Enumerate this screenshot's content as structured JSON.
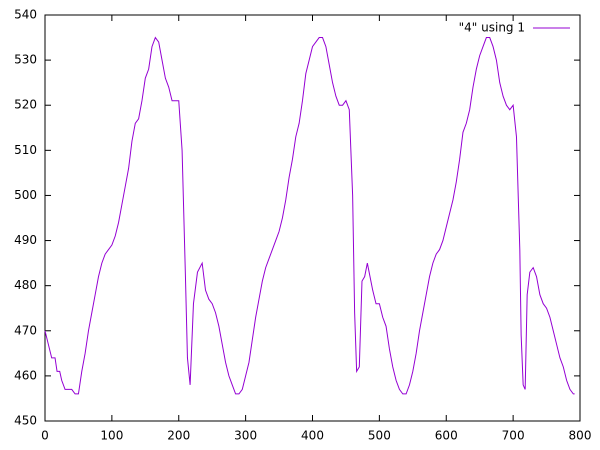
{
  "chart_data": {
    "type": "line",
    "x": [
      0,
      5,
      10,
      15,
      18,
      22,
      25,
      30,
      40,
      45,
      50,
      52,
      55,
      60,
      65,
      70,
      75,
      80,
      85,
      90,
      95,
      100,
      105,
      110,
      115,
      120,
      125,
      130,
      135,
      140,
      145,
      150,
      155,
      160,
      165,
      170,
      175,
      180,
      185,
      190,
      195,
      200,
      205,
      210,
      213,
      217,
      222,
      228,
      235,
      240,
      245,
      250,
      255,
      260,
      265,
      270,
      275,
      280,
      285,
      290,
      295,
      300,
      305,
      310,
      315,
      320,
      325,
      330,
      335,
      340,
      345,
      350,
      355,
      360,
      365,
      370,
      375,
      380,
      385,
      390,
      395,
      400,
      410,
      415,
      420,
      425,
      430,
      435,
      440,
      445,
      450,
      455,
      460,
      463,
      466,
      470,
      474,
      478,
      482,
      486,
      490,
      495,
      500,
      505,
      510,
      515,
      520,
      525,
      530,
      535,
      540,
      545,
      550,
      555,
      560,
      565,
      570,
      575,
      580,
      585,
      590,
      595,
      600,
      605,
      610,
      615,
      620,
      625,
      630,
      635,
      640,
      645,
      650,
      655,
      660,
      665,
      670,
      675,
      680,
      685,
      690,
      695,
      700,
      705,
      710,
      712,
      715,
      718,
      721,
      725,
      730,
      735,
      740,
      745,
      750,
      755,
      760,
      765,
      770,
      775,
      780,
      785,
      790,
      792
    ],
    "series": [
      {
        "name": "\"4\" using 1",
        "color": "#9400d3",
        "values": [
          470,
          467,
          464,
          464,
          461,
          461,
          459,
          457,
          457,
          456,
          456,
          458,
          461,
          465,
          470,
          474,
          478,
          482,
          485,
          487,
          488,
          489,
          491,
          494,
          498,
          502,
          506,
          512,
          516,
          517,
          521,
          526,
          528,
          533,
          535,
          534,
          530,
          526,
          524,
          521,
          521,
          521,
          510,
          482,
          464,
          458,
          476,
          483,
          485,
          479,
          477,
          476,
          474,
          471,
          467,
          463,
          460,
          458,
          456,
          456,
          457,
          460,
          463,
          468,
          473,
          477,
          481,
          484,
          486,
          488,
          490,
          492,
          495,
          499,
          504,
          508,
          513,
          516,
          521,
          527,
          530,
          533,
          535,
          535,
          533,
          529,
          525,
          522,
          520,
          520,
          521,
          519,
          500,
          474,
          461,
          462,
          481,
          482,
          485,
          482,
          479,
          476,
          476,
          473,
          471,
          466,
          462,
          459,
          457,
          456,
          456,
          458,
          461,
          465,
          470,
          474,
          478,
          482,
          485,
          487,
          488,
          490,
          493,
          496,
          499,
          503,
          508,
          514,
          516,
          519,
          524,
          528,
          531,
          533,
          535,
          535,
          533,
          530,
          525,
          522,
          520,
          519,
          520,
          513,
          488,
          469,
          458,
          457,
          478,
          483,
          484,
          482,
          478,
          476,
          475,
          473,
          470,
          467,
          464,
          462,
          459,
          457,
          456,
          456
        ]
      }
    ],
    "xlim": [
      0,
      800
    ],
    "xticks": [
      0,
      100,
      200,
      300,
      400,
      500,
      600,
      700,
      800
    ],
    "ylim": [
      450,
      540
    ],
    "yticks": [
      450,
      460,
      470,
      480,
      490,
      500,
      510,
      520,
      530,
      540
    ],
    "legend": "top-right"
  }
}
